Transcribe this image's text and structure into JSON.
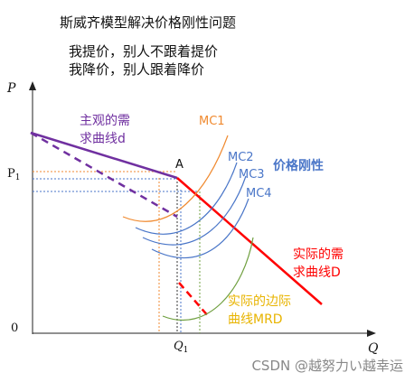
{
  "header": {
    "title": "斯威齐模型解决价格刚性问题",
    "line1": "我提价，别人不跟着提价",
    "line2": "我降价，别人跟着降价"
  },
  "axes": {
    "y_label": "P",
    "x_label": "Q",
    "origin": "0",
    "p1_label": "P",
    "p1_sub": "1",
    "q1_label": "Q",
    "q1_sub": "1"
  },
  "labels": {
    "subjective_line1": "主观的需",
    "subjective_line2": "求曲线d",
    "actual_line1": "实际的需",
    "actual_line2": "求曲线D",
    "mr_line1": "实际的边际",
    "mr_line2": "曲线MRD",
    "point_a": "A",
    "rigidity": "价格刚性",
    "mc1": "MC1",
    "mc2": "MC2",
    "mc3": "MC3",
    "mc4": "MC4"
  },
  "colors": {
    "subjective": "#7030a0",
    "actual": "#ff0000",
    "mr": "#e8b400",
    "mc1": "#f08a30",
    "mc2": "#4a76c8",
    "mc3": "#4a76c8",
    "mc4": "#4a76c8",
    "mr_curve": "#70a040",
    "rigidity": "#4a76c8",
    "dotted_orange": "#f08a30",
    "dotted_blue": "#4a76c8"
  },
  "footer": {
    "watermark": "CSDN @越努力い越幸运"
  }
}
